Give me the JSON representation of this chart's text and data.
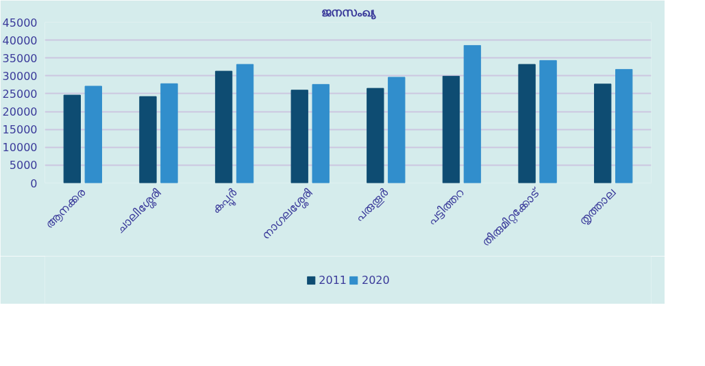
{
  "chart_data": {
    "type": "bar",
    "title": "ജനസംഖ്യ",
    "categories": [
      "ആനക്കര",
      "ചാലിശ്ശേരി",
      "കപ്പൂർ",
      "നാഗലശ്ശേരി",
      "പരുതൂർ",
      "പട്ടിത്തറ",
      "തിരുമിറ്റക്കോട്",
      "തൃത്താല"
    ],
    "series": [
      {
        "name": "2011",
        "color": "#0e4c72",
        "values": [
          24600,
          24200,
          31300,
          26000,
          26500,
          29900,
          33200,
          27700
        ]
      },
      {
        "name": "2020",
        "color": "#318ecc",
        "values": [
          27100,
          27800,
          33200,
          27600,
          29600,
          38500,
          34300,
          31800
        ]
      }
    ],
    "ylim": [
      0,
      45000
    ],
    "yticks": [
      0,
      5000,
      10000,
      15000,
      20000,
      25000,
      30000,
      35000,
      40000,
      45000
    ],
    "grid": "y",
    "legend": "bottom"
  }
}
